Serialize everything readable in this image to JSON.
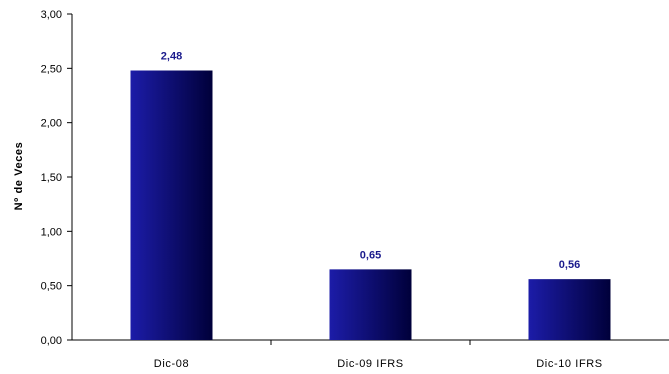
{
  "chart_data": {
    "type": "bar",
    "title": "",
    "xlabel": "",
    "ylabel": "Nº de Veces",
    "categories": [
      "Dic-08",
      "Dic-09 IFRS",
      "Dic-10 IFRS"
    ],
    "values": [
      2.48,
      0.65,
      0.56
    ],
    "data_labels": [
      "2,48",
      "0,65",
      "0,56"
    ],
    "ylim": [
      0,
      3
    ],
    "yticks": [
      0,
      0.5,
      1,
      1.5,
      2,
      2.5,
      3
    ],
    "ytick_labels": [
      "0,00",
      "0,50",
      "1,00",
      "1,50",
      "2,00",
      "2,50",
      "3,00"
    ],
    "grid": false,
    "legend": "none",
    "colors": {
      "bar_light": "#1c1ca8",
      "bar_dark": "#00003a",
      "data_label": "#1a1a8c",
      "axis": "#000000"
    }
  }
}
